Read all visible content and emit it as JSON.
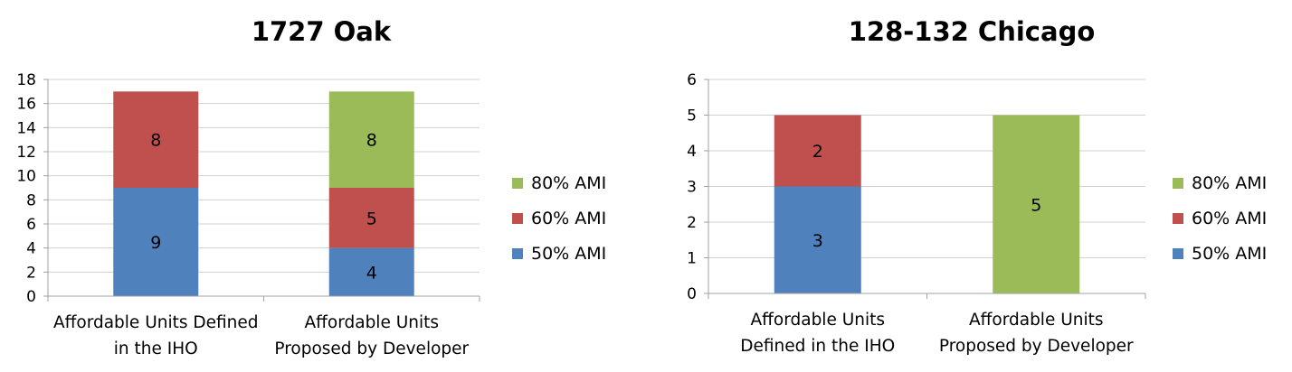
{
  "colors": {
    "50% AMI": "#4f81bd",
    "60% AMI": "#c0504d",
    "80% AMI": "#9bbb59",
    "grid": "#d0d0d0",
    "axis": "#a0a0a0"
  },
  "chart_data": [
    {
      "type": "bar",
      "stacked": true,
      "title": "1727 Oak",
      "categories": [
        "Affordable Units Defined in the IHO",
        "Affordable Units Proposed by Developer"
      ],
      "category_lines": [
        [
          "Affordable Units Defined",
          "in the IHO"
        ],
        [
          "Affordable Units",
          "Proposed by Developer"
        ]
      ],
      "series": [
        {
          "name": "50% AMI",
          "values": [
            9,
            4
          ]
        },
        {
          "name": "60% AMI",
          "values": [
            8,
            5
          ]
        },
        {
          "name": "80% AMI",
          "values": [
            0,
            8
          ]
        }
      ],
      "ylim": [
        0,
        18
      ],
      "yticks": [
        0,
        2,
        4,
        6,
        8,
        10,
        12,
        14,
        16,
        18
      ],
      "grid": true,
      "data_labels": true,
      "legend_position": "right",
      "legend_order": [
        "80% AMI",
        "60% AMI",
        "50% AMI"
      ],
      "xlabel": "",
      "ylabel": ""
    },
    {
      "type": "bar",
      "stacked": true,
      "title": "128-132 Chicago",
      "categories": [
        "Affordable Units Defined in the IHO",
        "Affordable Units Proposed by Developer"
      ],
      "category_lines": [
        [
          "Affordable Units",
          "Defined in the IHO"
        ],
        [
          "Affordable Units",
          "Proposed by Developer"
        ]
      ],
      "series": [
        {
          "name": "50% AMI",
          "values": [
            3,
            0
          ]
        },
        {
          "name": "60% AMI",
          "values": [
            2,
            0
          ]
        },
        {
          "name": "80% AMI",
          "values": [
            0,
            5
          ]
        }
      ],
      "ylim": [
        0,
        6
      ],
      "yticks": [
        0,
        1,
        2,
        3,
        4,
        5,
        6
      ],
      "grid": true,
      "data_labels": true,
      "legend_position": "right",
      "legend_order": [
        "80% AMI",
        "60% AMI",
        "50% AMI"
      ],
      "xlabel": "",
      "ylabel": ""
    }
  ]
}
